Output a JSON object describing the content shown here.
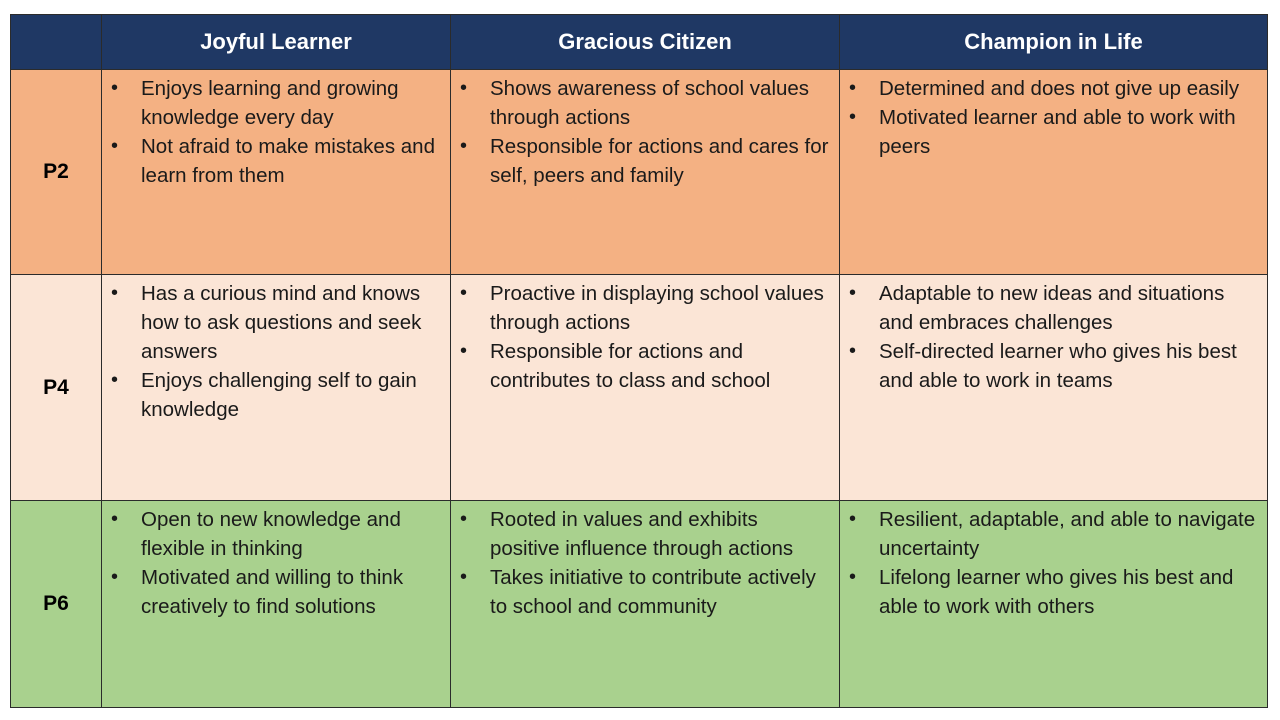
{
  "header": {
    "corner": "",
    "columns": [
      "Joyful Learner",
      "Gracious Citizen",
      "Champion in Life"
    ]
  },
  "colors": {
    "header_bg": "#1f3864",
    "p2_row": "#f4b183",
    "p4_row": "#fbe5d6",
    "p6_row": "#a9d18e"
  },
  "rows": [
    {
      "level": "P2",
      "cells": [
        [
          "Enjoys learning and growing knowledge every day",
          "Not afraid to make mistakes and learn from them"
        ],
        [
          "Shows awareness of school values through actions",
          "Responsible for actions and cares for self, peers and family"
        ],
        [
          "Determined and does not give up easily",
          "Motivated learner and able to work with peers"
        ]
      ]
    },
    {
      "level": "P4",
      "cells": [
        [
          "Has a curious mind and knows how to ask questions and seek answers",
          "Enjoys challenging self to gain knowledge"
        ],
        [
          "Proactive in displaying school values through actions",
          "Responsible for actions and contributes to class and school"
        ],
        [
          "Adaptable to new ideas and situations and embraces challenges",
          "Self-directed learner who gives his best and able to work in teams"
        ]
      ]
    },
    {
      "level": "P6",
      "cells": [
        [
          "Open to new knowledge and flexible in thinking",
          "Motivated and willing to think creatively to find solutions"
        ],
        [
          "Rooted in values and exhibits positive influence through actions",
          "Takes initiative to contribute actively to school and community"
        ],
        [
          "Resilient, adaptable, and able to navigate uncertainty",
          "Lifelong learner who gives his best and able to work with others"
        ]
      ]
    }
  ]
}
